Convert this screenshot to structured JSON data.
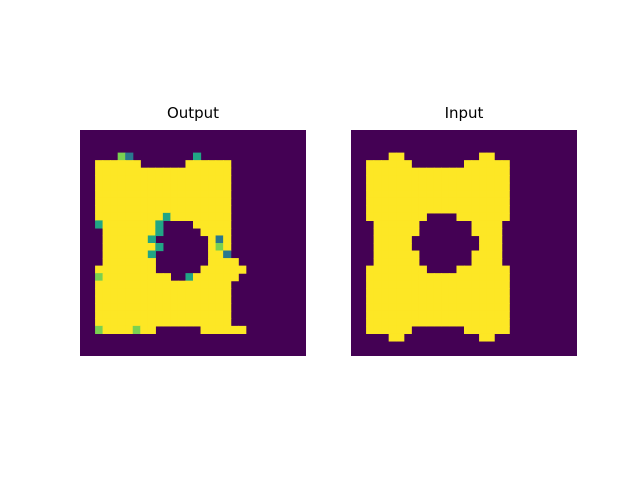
{
  "figure": {
    "colors": {
      "background": "#440154",
      "foreground": "#fde725",
      "edge_teal": "#21a585",
      "edge_green": "#7ad151",
      "edge_blue": "#2a788e"
    }
  },
  "chart_data": [
    {
      "type": "heatmap",
      "title": "Output",
      "grid": false,
      "rows": [
        "0000000000000000000000",
        "0000000000000000000000",
        "0000000000000000000000",
        "00000gb00000000t000000",
        "0011111100000011111100",
        "0011111111111111111100",
        "0011111111111111111100",
        "0011111111111111111100",
        "0011111111111111111100",
        "0011111111111111111100",
        "0011111111111111111100",
        "00111111111t1111111100",
        "00t1111111t000011111000",
        "0001111111t000001111000",
        "000111111t00000001b1000",
        "0001111111t0000001g1000",
        "000111111t000000011b000",
        "00011111110000000111100",
        "0011111111000000111111000",
        "00g11111111100t111111000",
        "0011111111111111111100",
        "0011111111111111111100",
        "0011111111111111111100",
        "0011111111111111111100",
        "0011111111111111111100",
        "0011111111111111111100",
        "00g1111g1100000011111100",
        "0000000000000000000000",
        "0000000000000000000000",
        "0000000000000000000000"
      ]
    },
    {
      "type": "heatmap",
      "title": "Input",
      "grid": false,
      "rows": [
        "0000000000000000000000",
        "0000000000000000000000",
        "0000000000000000000000",
        "0000011000000000011000",
        "0011111100000001111110",
        "0011111111111111111110",
        "0011111111111111111110",
        "0011111111111111111110",
        "0011111111111111111110",
        "0011111111111111111110",
        "0011111111111111111110",
        "0011111111000011111110",
        "0001111110000000111100",
        "0001111110000000111100",
        "0001111100000000011100",
        "0001111100000000011100",
        "0001111110000000111100",
        "0001111110000000111100",
        "0011111111000011111110",
        "0011111111111111111110",
        "0011111111111111111110",
        "0011111111111111111110",
        "0011111111111111111110",
        "0011111111111111111110",
        "0011111111111111111110",
        "0011111111111111111110",
        "0011111100000001111110",
        "0000011000000000011000",
        "0000000000000000000000",
        "0000000000000000000000"
      ]
    }
  ]
}
